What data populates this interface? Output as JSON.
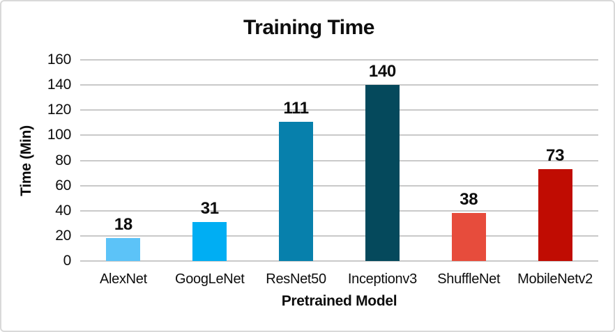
{
  "chart_data": {
    "type": "bar",
    "title": "Training Time",
    "xlabel": "Pretrained Model",
    "ylabel": "Time (Min)",
    "categories": [
      "AlexNet",
      "GoogLeNet",
      "ResNet50",
      "Inceptionv3",
      "ShuffleNet",
      "MobileNetv2"
    ],
    "values": [
      18,
      31,
      111,
      140,
      38,
      73
    ],
    "data_labels": [
      "18",
      "31",
      "111",
      "140",
      "38",
      "73"
    ],
    "bar_colors": [
      "#5CC3F8",
      "#00AEF3",
      "#0780AC",
      "#05495C",
      "#E74C3C",
      "#C00C02"
    ],
    "ylim": [
      0,
      160
    ],
    "yticks": [
      0,
      20,
      40,
      60,
      80,
      100,
      120,
      140,
      160
    ],
    "grid": true,
    "gridline_color": "#c9c9c9",
    "legend": "none"
  },
  "frame": {
    "background_color": "#ffffff",
    "border_color": "#d9d9d9"
  }
}
